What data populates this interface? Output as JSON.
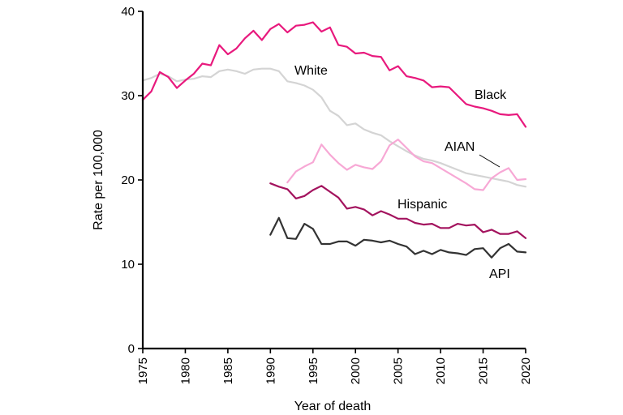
{
  "chart_data": {
    "type": "line",
    "title": "",
    "xlabel": "Year of death",
    "ylabel": "Rate per 100,000",
    "xlim": [
      1975,
      2020
    ],
    "ylim": [
      0,
      40
    ],
    "x_ticks": [
      "1975",
      "1980",
      "1985",
      "1990",
      "1995",
      "2000",
      "2005",
      "2010",
      "2015",
      "2020"
    ],
    "y_ticks": [
      "0",
      "10",
      "20",
      "30",
      "40"
    ],
    "grid": false,
    "series": [
      {
        "name": "White",
        "color": "#d4d4d4",
        "x": [
          1975,
          1976,
          1977,
          1978,
          1979,
          1980,
          1981,
          1982,
          1983,
          1984,
          1985,
          1986,
          1987,
          1988,
          1989,
          1990,
          1991,
          1992,
          1993,
          1994,
          1995,
          1996,
          1997,
          1998,
          1999,
          2000,
          2001,
          2002,
          2003,
          2004,
          2005,
          2006,
          2007,
          2008,
          2009,
          2010,
          2011,
          2012,
          2013,
          2014,
          2015,
          2016,
          2017,
          2018,
          2019,
          2020
        ],
        "y": [
          31.8,
          32.1,
          32.6,
          32.3,
          31.7,
          31.9,
          32.0,
          32.3,
          32.2,
          32.9,
          33.1,
          32.9,
          32.6,
          33.1,
          33.2,
          33.2,
          32.9,
          31.7,
          31.5,
          31.2,
          30.7,
          29.8,
          28.2,
          27.6,
          26.5,
          26.7,
          26.0,
          25.6,
          25.3,
          24.6,
          24.0,
          23.4,
          22.9,
          22.5,
          22.3,
          22.0,
          21.6,
          21.2,
          20.8,
          20.6,
          20.4,
          20.2,
          20.0,
          19.8,
          19.4,
          19.2
        ]
      },
      {
        "name": "Black",
        "color": "#e8197d",
        "x": [
          1975,
          1976,
          1977,
          1978,
          1979,
          1980,
          1981,
          1982,
          1983,
          1984,
          1985,
          1986,
          1987,
          1988,
          1989,
          1990,
          1991,
          1992,
          1993,
          1994,
          1995,
          1996,
          1997,
          1998,
          1999,
          2000,
          2001,
          2002,
          2003,
          2004,
          2005,
          2006,
          2007,
          2008,
          2009,
          2010,
          2011,
          2012,
          2013,
          2014,
          2015,
          2016,
          2017,
          2018,
          2019,
          2020
        ],
        "y": [
          29.5,
          30.5,
          32.8,
          32.2,
          30.9,
          31.8,
          32.6,
          33.8,
          33.6,
          36.0,
          34.9,
          35.6,
          36.8,
          37.7,
          36.6,
          37.9,
          38.5,
          37.5,
          38.3,
          38.4,
          38.7,
          37.6,
          38.1,
          36.0,
          35.8,
          35.0,
          35.1,
          34.7,
          34.6,
          33.0,
          33.5,
          32.3,
          32.1,
          31.8,
          31.0,
          31.1,
          31.0,
          30.0,
          29.0,
          28.7,
          28.5,
          28.2,
          27.8,
          27.7,
          27.8,
          26.3
        ]
      },
      {
        "name": "AIAN",
        "color": "#f7a8d5",
        "x": [
          1992,
          1993,
          1994,
          1995,
          1996,
          1997,
          1998,
          1999,
          2000,
          2001,
          2002,
          2003,
          2004,
          2005,
          2006,
          2007,
          2008,
          2009,
          2010,
          2011,
          2012,
          2013,
          2014,
          2015,
          2016,
          2017,
          2018,
          2019,
          2020
        ],
        "y": [
          19.7,
          21.0,
          21.6,
          22.1,
          24.2,
          23.0,
          22.0,
          21.2,
          21.8,
          21.5,
          21.3,
          22.2,
          24.1,
          24.8,
          23.8,
          22.8,
          22.2,
          22.0,
          21.4,
          20.8,
          20.2,
          19.6,
          18.9,
          18.8,
          20.2,
          20.9,
          21.4,
          20.0,
          20.1
        ]
      },
      {
        "name": "Hispanic",
        "color": "#a3135e",
        "x": [
          1990,
          1991,
          1992,
          1993,
          1994,
          1995,
          1996,
          1997,
          1998,
          1999,
          2000,
          2001,
          2002,
          2003,
          2004,
          2005,
          2006,
          2007,
          2008,
          2009,
          2010,
          2011,
          2012,
          2013,
          2014,
          2015,
          2016,
          2017,
          2018,
          2019,
          2020
        ],
        "y": [
          19.6,
          19.2,
          18.9,
          17.8,
          18.1,
          18.8,
          19.3,
          18.6,
          17.9,
          16.6,
          16.8,
          16.5,
          15.8,
          16.3,
          15.9,
          15.4,
          15.4,
          14.9,
          14.7,
          14.8,
          14.3,
          14.3,
          14.8,
          14.6,
          14.7,
          13.8,
          14.1,
          13.6,
          13.6,
          13.9,
          13.1
        ]
      },
      {
        "name": "API",
        "color": "#333333",
        "x": [
          1990,
          1991,
          1992,
          1993,
          1994,
          1995,
          1996,
          1997,
          1998,
          1999,
          2000,
          2001,
          2002,
          2003,
          2004,
          2005,
          2006,
          2007,
          2008,
          2009,
          2010,
          2011,
          2012,
          2013,
          2014,
          2015,
          2016,
          2017,
          2018,
          2019,
          2020
        ],
        "y": [
          13.5,
          15.5,
          13.1,
          13.0,
          14.8,
          14.2,
          12.4,
          12.4,
          12.7,
          12.7,
          12.2,
          12.9,
          12.8,
          12.6,
          12.8,
          12.4,
          12.1,
          11.2,
          11.6,
          11.2,
          11.7,
          11.4,
          11.3,
          11.1,
          11.8,
          11.9,
          10.8,
          11.9,
          12.4,
          11.5,
          11.4
        ]
      }
    ],
    "annotations": {
      "white_label": "White",
      "black_label": "Black",
      "aian_label": "AIAN",
      "hispanic_label": "Hispanic",
      "api_label": "API"
    }
  }
}
